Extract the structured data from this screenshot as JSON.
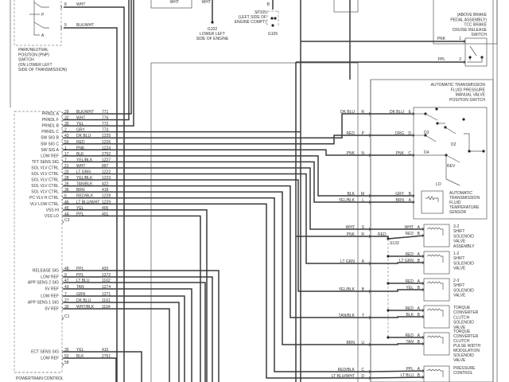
{
  "pnp_switch": {
    "label": [
      "PARK/NEUTRAL",
      "POSITION (PNP)",
      "SWITCH",
      "(ON LOWER LEFT",
      "SIDE OF TRANSMISSION)"
    ],
    "positions": [
      "P",
      "A"
    ],
    "pins": [
      {
        "pin": "8",
        "color": "WHT"
      },
      {
        "pin": "5",
        "color": "BLK/WHT"
      }
    ]
  },
  "top_wires": [
    "WHT",
    "WHT"
  ],
  "g102": {
    "label": [
      "G102",
      "LOWER LEFT",
      "SIDE OF ENGINE"
    ]
  },
  "sp105": {
    "pin": "B",
    "label": [
      "SP105",
      "(LEFT SIDE OF",
      "ENGINE COMPT)"
    ],
    "ground": "G105"
  },
  "brake_switch": {
    "label": [
      "(ABOVE BRAKE",
      "PEDAL ASSEMBLY)",
      "TCC BRAKE",
      "CRUISE RELEASE",
      "SWITCH"
    ],
    "pins": [
      {
        "color": "PNK",
        "pin": "1"
      },
      {
        "color": "PPL",
        "pin": "2"
      }
    ]
  },
  "pcm": {
    "label": "POWERTRAIN CONTROL",
    "group1": [
      {
        "label": "PRNDL A",
        "pin": "29",
        "color": "BLK/WHT",
        "circuit": "771"
      },
      {
        "label": "PRNDL F",
        "pin": "32",
        "color": "WHT",
        "circuit": "776"
      },
      {
        "label": "PRNDL B",
        "pin": "30",
        "color": "YEL",
        "circuit": "772"
      },
      {
        "label": "PRNDL C",
        "pin": "2",
        "color": "GRY",
        "circuit": "773"
      },
      {
        "label": "SW SIG B",
        "pin": "43",
        "color": "DK BLU",
        "circuit": "1225"
      },
      {
        "label": "SW SIG C",
        "pin": "50",
        "color": "RED",
        "circuit": "1226"
      },
      {
        "label": "SW SIG A",
        "pin": "1",
        "color": "PNK",
        "circuit": "1224"
      },
      {
        "label": "LOW REF",
        "pin": "17",
        "color": "BLK",
        "circuit": "2752"
      },
      {
        "label": "TFT SENS SIG",
        "pin": "7",
        "color": "YEL/BLK",
        "circuit": "1227"
      },
      {
        "label": "SOL VLV CTRL",
        "pin": "21",
        "color": "WHT",
        "circuit": "897"
      },
      {
        "label": "SOL VLV CTRL",
        "pin": "20",
        "color": "LT GRN",
        "circuit": "1222"
      },
      {
        "label": "SOL VLV CTRL",
        "pin": "28",
        "color": "YEL/BLK",
        "circuit": "1223"
      },
      {
        "label": "SOL VLV CTRL",
        "pin": "26",
        "color": "TAN/BLK",
        "circuit": "422"
      },
      {
        "label": "SOL VLV CTRL",
        "pin": "36",
        "color": "BRN",
        "circuit": "418"
      },
      {
        "label": "PC VLV H CTRL",
        "pin": "6",
        "color": "RED/BLK",
        "circuit": "1228"
      },
      {
        "label": "VLV LOW CTRL",
        "pin": "46",
        "color": "LT BLU/WHT",
        "circuit": "1229"
      },
      {
        "label": "VSS HI",
        "pin": "45",
        "color": "YEL",
        "circuit": "400"
      },
      {
        "label": "VSS LO",
        "pin": "44",
        "color": "PPL",
        "circuit": "401"
      },
      {
        "label": "",
        "pin": "C3",
        "color": "",
        "circuit": ""
      }
    ],
    "group2": [
      {
        "label": "RELEASE SIG",
        "pin": "48",
        "color": "PPL",
        "circuit": "420"
      },
      {
        "label": "LOW REF",
        "pin": "9",
        "color": "PPL",
        "circuit": "1272"
      },
      {
        "label": "APP SENS 2 SIG",
        "pin": "47",
        "color": "LT BLU",
        "circuit": "1162"
      },
      {
        "label": "5V REF",
        "pin": "43",
        "color": "TAN",
        "circuit": "1274"
      },
      {
        "label": "LOW REF",
        "pin": "7",
        "color": "GRN",
        "circuit": "1271"
      },
      {
        "label": "APP SENS 1 SIG",
        "pin": "27",
        "color": "DK BLU",
        "circuit": "1161"
      },
      {
        "label": "5V REF",
        "pin": "30",
        "color": "WHT/BLK",
        "circuit": "1164"
      },
      {
        "label": "",
        "pin": "C1",
        "color": "",
        "circuit": ""
      }
    ],
    "group3": [
      {
        "label": "ECT SENS SIG",
        "pin": "35",
        "color": "YEL",
        "circuit": "410"
      },
      {
        "label": "LOW REF",
        "pin": "52",
        "color": "BLK",
        "circuit": "2761"
      },
      {
        "label": "",
        "pin": "58",
        "color": "",
        "circuit": ""
      }
    ]
  },
  "trans_harness": [
    {
      "color": "DK BLU",
      "pin": "R"
    },
    {
      "color": "RED",
      "pin": "P"
    },
    {
      "color": "PNK",
      "pin": "N"
    },
    {
      "color": "BLK",
      "pin": "M"
    },
    {
      "color": "YEL/BLK",
      "pin": "L"
    },
    {
      "color": "WHT",
      "pin": "S"
    },
    {
      "color": "PNK",
      "pin": "R"
    },
    {
      "color": "LT GRN",
      "pin": "A"
    },
    {
      "color": "YEL/BLK",
      "pin": "B"
    },
    {
      "color": "TAN/BLK",
      "pin": "T"
    },
    {
      "color": "BRN",
      "pin": "U"
    },
    {
      "color": "RED/BLK",
      "pin": "C"
    },
    {
      "color": "LT BLU/WHT",
      "pin": "D"
    }
  ],
  "tfp_switch": {
    "label": [
      "AUTOMATIC TRANSMISSION",
      "FLUID PRESSURE",
      "MANUAL VALVE",
      "POSITION SWITCH"
    ],
    "pins": [
      {
        "color": "DK BLU",
        "pin": "E"
      },
      {
        "color": "ORG",
        "pin": "D"
      },
      {
        "color": "PNK",
        "pin": "C"
      }
    ],
    "positions": [
      "D3",
      "D2",
      "D4",
      "REV",
      "LO"
    ]
  },
  "tft_sensor": {
    "label": [
      "AUTOMATIC",
      "TRANSMISSION",
      "FLUID",
      "TEMPERATURE",
      "SENSOR"
    ],
    "pins": [
      {
        "color": "GRY",
        "pin": "B"
      },
      {
        "color": "BRN",
        "pin": "A"
      }
    ]
  },
  "splice": {
    "name": "S133",
    "color": "RED"
  },
  "solenoids": [
    {
      "pins": [
        {
          "color": "WHT",
          "pin": "A"
        },
        {
          "color": "RED",
          "pin": "B"
        }
      ],
      "label": [
        "3-2",
        "SHIFT",
        "SOLENOID",
        "VALVE",
        "ASSEMBLY"
      ]
    },
    {
      "pins": [
        {
          "color": "RED",
          "pin": "A"
        },
        {
          "color": "LT GRN",
          "pin": "B"
        }
      ],
      "label": [
        "1-2",
        "SHIFT",
        "SOLENOID",
        "VALVE"
      ]
    },
    {
      "pins": [
        {
          "color": "RED",
          "pin": "A"
        },
        {
          "color": "YEL",
          "pin": "B"
        }
      ],
      "label": [
        "2-3",
        "SHIFT",
        "SOLENOID",
        "VALVE"
      ]
    },
    {
      "pins": [
        {
          "color": "RED",
          "pin": "A"
        },
        {
          "color": "BLK",
          "pin": "B"
        }
      ],
      "label": [
        "TORQUE",
        "CONVERTER",
        "CLUTCH",
        "SOLENOID",
        "VALVE"
      ]
    },
    {
      "pins": [
        {
          "color": "RED",
          "pin": "A"
        },
        {
          "color": "TAN",
          "pin": "B"
        }
      ],
      "label": [
        "TORQUE",
        "CONVERTER",
        "CLUTCH",
        "PULSE WIDTH",
        "MODULATION",
        "SOLENOID",
        "VALVE"
      ]
    },
    {
      "pins": [
        {
          "color": "PPL",
          "pin": "A"
        },
        {
          "color": "LT BLU",
          "pin": "B"
        }
      ],
      "label": [
        "PRESSURE",
        "CONTROL"
      ]
    }
  ]
}
